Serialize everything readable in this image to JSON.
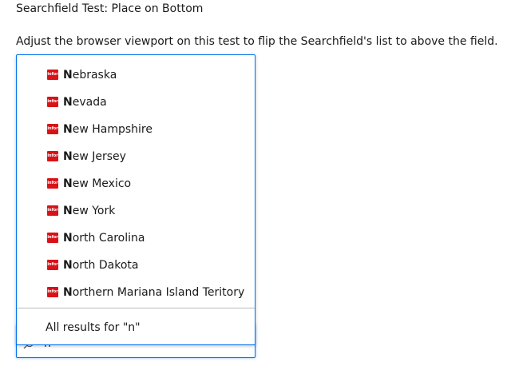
{
  "page": {
    "title": "Searchfield Test: Place on Bottom",
    "instructions": "Adjust the browser viewport on this test to flip the Searchfield's list to above the field."
  },
  "colors": {
    "focus_border": "#0072ed",
    "logo_red": "#da1217",
    "divider": "#bbbbbf"
  },
  "search": {
    "value": "n",
    "icon": "search-icon"
  },
  "results": {
    "logo_text": "infor",
    "items": [
      {
        "match": "N",
        "rest": "ebraska"
      },
      {
        "match": "N",
        "rest": "evada"
      },
      {
        "match": "N",
        "rest": "ew Hampshire"
      },
      {
        "match": "N",
        "rest": "ew Jersey"
      },
      {
        "match": "N",
        "rest": "ew Mexico"
      },
      {
        "match": "N",
        "rest": "ew York"
      },
      {
        "match": "N",
        "rest": "orth Carolina"
      },
      {
        "match": "N",
        "rest": "orth Dakota"
      },
      {
        "match": "N",
        "rest": "orthern Mariana Island Teritory"
      }
    ],
    "all_results_label": "All results for \"n\""
  }
}
